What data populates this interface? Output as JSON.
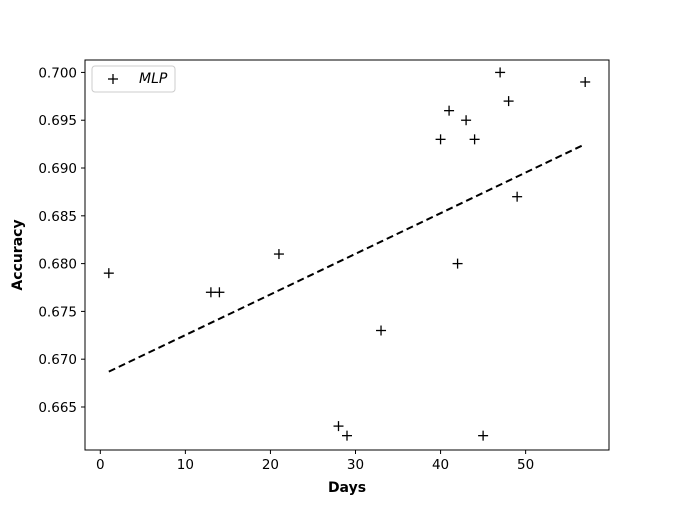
{
  "chart_data": {
    "type": "scatter",
    "title": "",
    "xlabel": "Days",
    "ylabel": "Accuracy",
    "xlim": [
      -1.8,
      59.8
    ],
    "ylim": [
      0.6605,
      0.7013
    ],
    "xticks": [
      0,
      10,
      20,
      30,
      40,
      50
    ],
    "yticks": [
      0.665,
      0.67,
      0.675,
      0.68,
      0.685,
      0.69,
      0.695,
      0.7
    ],
    "ytick_labels": [
      "0.665",
      "0.670",
      "0.675",
      "0.680",
      "0.685",
      "0.690",
      "0.695",
      "0.700"
    ],
    "grid": false,
    "legend": {
      "position": "top-left",
      "entries": [
        {
          "label": "MLP",
          "marker": "+"
        }
      ]
    },
    "series": [
      {
        "name": "MLP",
        "marker": "+",
        "color": "#000000",
        "points": [
          {
            "x": 1,
            "y": 0.679
          },
          {
            "x": 13,
            "y": 0.677
          },
          {
            "x": 14,
            "y": 0.677
          },
          {
            "x": 21,
            "y": 0.681
          },
          {
            "x": 28,
            "y": 0.663
          },
          {
            "x": 29,
            "y": 0.662
          },
          {
            "x": 33,
            "y": 0.673
          },
          {
            "x": 40,
            "y": 0.693
          },
          {
            "x": 41,
            "y": 0.696
          },
          {
            "x": 42,
            "y": 0.68
          },
          {
            "x": 43,
            "y": 0.695
          },
          {
            "x": 44,
            "y": 0.693
          },
          {
            "x": 45,
            "y": 0.662
          },
          {
            "x": 47,
            "y": 0.7
          },
          {
            "x": 48,
            "y": 0.697
          },
          {
            "x": 49,
            "y": 0.687
          },
          {
            "x": 57,
            "y": 0.699
          }
        ]
      }
    ],
    "trendline": {
      "style": "dashed",
      "color": "#000000",
      "points": [
        {
          "x": 1,
          "y": 0.6687
        },
        {
          "x": 57,
          "y": 0.6925
        }
      ]
    }
  }
}
